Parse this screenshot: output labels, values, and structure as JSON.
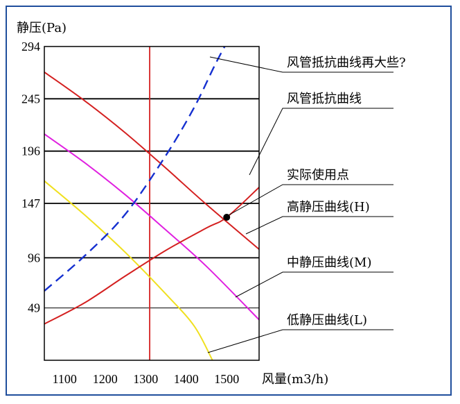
{
  "chart_data": {
    "type": "line",
    "ylabel": "静压(Pa)",
    "xlabel": "风量(m3/h)",
    "xlim": [
      1050,
      1580
    ],
    "ylim": [
      0,
      294
    ],
    "x_ticks": [
      "1100",
      "1200",
      "1300",
      "1400",
      "1500"
    ],
    "y_ticks": [
      "294",
      "245",
      "196",
      "147",
      "96",
      "49"
    ],
    "y_tick_values": [
      294,
      245,
      196,
      147,
      96,
      49
    ],
    "x_tick_values": [
      1100,
      1200,
      1300,
      1400,
      1500
    ],
    "reference_x": 1310,
    "series": [
      {
        "id": "high",
        "name": "高静压曲线(H)",
        "color": "#d42020",
        "points": [
          [
            1050,
            270
          ],
          [
            1150,
            243
          ],
          [
            1250,
            213
          ],
          [
            1350,
            180
          ],
          [
            1450,
            146
          ],
          [
            1580,
            104
          ]
        ]
      },
      {
        "id": "mid",
        "name": "中静压曲线(M)",
        "color": "#e020e0",
        "points": [
          [
            1050,
            212
          ],
          [
            1150,
            185
          ],
          [
            1250,
            155
          ],
          [
            1350,
            122
          ],
          [
            1450,
            88
          ],
          [
            1580,
            38
          ]
        ]
      },
      {
        "id": "low",
        "name": "低静压曲线(L)",
        "color": "#f0e020",
        "points": [
          [
            1050,
            168
          ],
          [
            1150,
            136
          ],
          [
            1250,
            101
          ],
          [
            1350,
            62
          ],
          [
            1420,
            32
          ],
          [
            1465,
            0
          ]
        ]
      },
      {
        "id": "duct",
        "name": "风管抵抗曲线",
        "color": "#d42020",
        "points": [
          [
            1050,
            34
          ],
          [
            1150,
            54
          ],
          [
            1250,
            79
          ],
          [
            1350,
            103
          ],
          [
            1450,
            124
          ],
          [
            1500,
            134
          ],
          [
            1580,
            162
          ]
        ]
      },
      {
        "id": "duct_high",
        "name": "风管抵抗曲线再大些?",
        "color": "#1530d0",
        "dashed": true,
        "points": [
          [
            1050,
            65
          ],
          [
            1150,
            98
          ],
          [
            1250,
            137
          ],
          [
            1350,
            192
          ],
          [
            1420,
            237
          ],
          [
            1470,
            276
          ],
          [
            1495,
            294
          ]
        ]
      }
    ],
    "operating_point": {
      "label": "实际使用点",
      "x": 1500,
      "y": 134
    },
    "annotations": [
      {
        "text": "风管抵抗曲线再大些?",
        "series": "duct_high"
      },
      {
        "text": "风管抵抗曲线",
        "series": "duct"
      },
      {
        "text": "实际使用点",
        "series": "operating_point"
      },
      {
        "text": "高静压曲线(H)",
        "series": "high"
      },
      {
        "text": "中静压曲线(M)",
        "series": "mid"
      },
      {
        "text": "低静压曲线(L)",
        "series": "low"
      }
    ]
  }
}
